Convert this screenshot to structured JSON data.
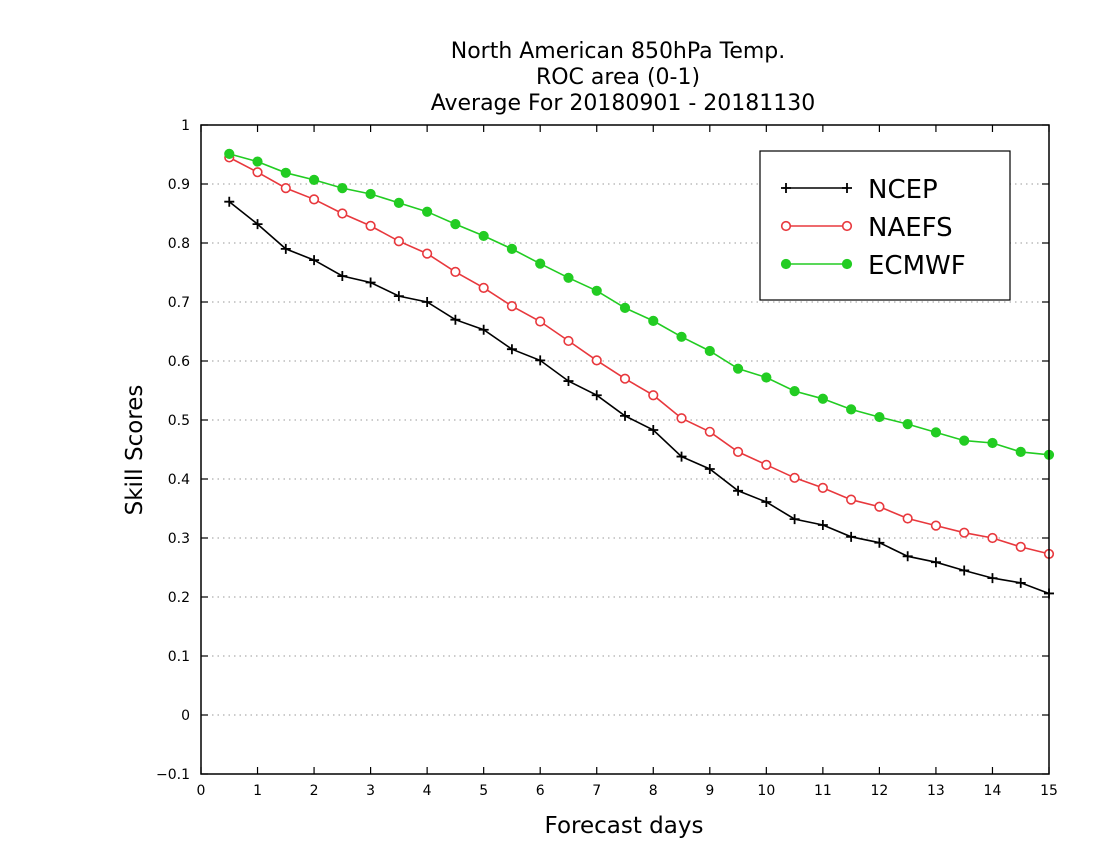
{
  "chart_data": {
    "type": "line",
    "title": [
      "North American 850hPa Temp.",
      "ROC area (0-1)",
      "Average For 20180901 - 20181130"
    ],
    "xlabel": "Forecast days",
    "ylabel": "Skill Scores",
    "xlim": [
      0,
      15
    ],
    "ylim": [
      -0.1,
      1
    ],
    "xticks": [
      0,
      1,
      2,
      3,
      4,
      5,
      6,
      7,
      8,
      9,
      10,
      11,
      12,
      13,
      14,
      15
    ],
    "xtick_labels": [
      "0",
      "1",
      "2",
      "3",
      "4",
      "5",
      "6",
      "7",
      "8",
      "9",
      "10",
      "11",
      "12",
      "13",
      "14",
      "15"
    ],
    "yticks": [
      -0.1,
      0,
      0.1,
      0.2,
      0.3,
      0.4,
      0.5,
      0.6,
      0.7,
      0.8,
      0.9,
      1
    ],
    "ytick_labels": [
      "−0.1",
      "0",
      "0.1",
      "0.2",
      "0.3",
      "0.4",
      "0.5",
      "0.6",
      "0.7",
      "0.8",
      "0.9",
      "1"
    ],
    "grid": "horizontal-dotted",
    "legend_position": "top-right",
    "x": [
      0.5,
      1,
      1.5,
      2,
      2.5,
      3,
      3.5,
      4,
      4.5,
      5,
      5.5,
      6,
      6.5,
      7,
      7.5,
      8,
      8.5,
      9,
      9.5,
      10,
      10.5,
      11,
      11.5,
      12,
      12.5,
      13,
      13.5,
      14,
      14.5,
      15
    ],
    "series": [
      {
        "name": "NCEP",
        "color": "#000000",
        "marker": "plus",
        "values": [
          0.87,
          0.832,
          0.79,
          0.771,
          0.744,
          0.733,
          0.71,
          0.7,
          0.67,
          0.653,
          0.62,
          0.601,
          0.566,
          0.542,
          0.507,
          0.483,
          0.438,
          0.417,
          0.38,
          0.361,
          0.332,
          0.322,
          0.302,
          0.292,
          0.269,
          0.259,
          0.245,
          0.232,
          0.224,
          0.206
        ]
      },
      {
        "name": "NAEFS",
        "color": "#e8383d",
        "marker": "open-circle",
        "values": [
          0.945,
          0.92,
          0.893,
          0.874,
          0.85,
          0.829,
          0.803,
          0.782,
          0.751,
          0.724,
          0.693,
          0.667,
          0.634,
          0.601,
          0.57,
          0.542,
          0.503,
          0.48,
          0.446,
          0.424,
          0.402,
          0.385,
          0.365,
          0.353,
          0.333,
          0.321,
          0.309,
          0.3,
          0.285,
          0.273
        ]
      },
      {
        "name": "ECMWF",
        "color": "#22cc22",
        "marker": "filled-circle",
        "values": [
          0.951,
          0.938,
          0.919,
          0.907,
          0.893,
          0.883,
          0.868,
          0.853,
          0.832,
          0.812,
          0.79,
          0.765,
          0.741,
          0.719,
          0.69,
          0.668,
          0.641,
          0.617,
          0.587,
          0.572,
          0.549,
          0.536,
          0.518,
          0.505,
          0.493,
          0.479,
          0.465,
          0.461,
          0.446,
          0.441
        ]
      }
    ]
  }
}
